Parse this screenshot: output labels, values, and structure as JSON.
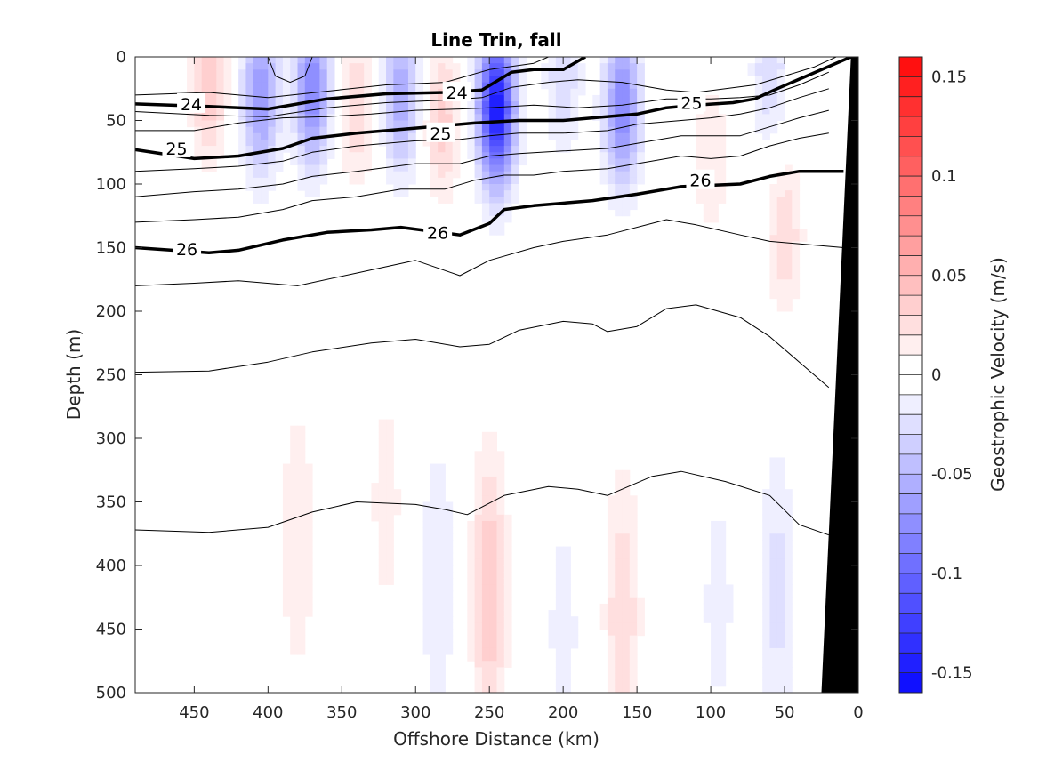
{
  "chart_data": {
    "type": "heatmap",
    "title": "Line Trin, fall",
    "xlabel": "Offshore Distance (km)",
    "ylabel": "Depth (m)",
    "colorbar_label": "Geostrophic Velocity (m/s)",
    "xlim": [
      490,
      0
    ],
    "ylim": [
      0,
      500
    ],
    "x_ticks": [
      "450",
      "400",
      "350",
      "300",
      "250",
      "200",
      "150",
      "100",
      "50",
      "0"
    ],
    "x_tick_values": [
      450,
      400,
      350,
      300,
      250,
      200,
      150,
      100,
      50,
      0
    ],
    "y_ticks": [
      "0",
      "50",
      "100",
      "150",
      "200",
      "250",
      "300",
      "350",
      "400",
      "450",
      "500"
    ],
    "y_tick_values": [
      0,
      50,
      100,
      150,
      200,
      250,
      300,
      350,
      400,
      450,
      500
    ],
    "colorbar_ticks": [
      "0.15",
      "0.1",
      "0.05",
      "0",
      "-0.05",
      "-0.1",
      "-0.15"
    ],
    "colorbar_tick_values": [
      0.15,
      0.1,
      0.05,
      0,
      -0.05,
      -0.1,
      -0.15
    ],
    "clim": [
      -0.16,
      0.16
    ],
    "colorbar_levels": 32,
    "colors": {
      "positive": "#ff0000",
      "negative": "#0000ff",
      "neutral": "#ffffff",
      "topography": "#000000",
      "contour": "#000000"
    },
    "velocity_cores": [
      {
        "x": 440,
        "y": 20,
        "vel": 0.04
      },
      {
        "x": 405,
        "y": 30,
        "vel": -0.07
      },
      {
        "x": 370,
        "y": 25,
        "vel": -0.08
      },
      {
        "x": 340,
        "y": 40,
        "vel": 0.03
      },
      {
        "x": 310,
        "y": 30,
        "vel": -0.06
      },
      {
        "x": 282,
        "y": 50,
        "vel": 0.035
      },
      {
        "x": 245,
        "y": 40,
        "vel": -0.15
      },
      {
        "x": 200,
        "y": 15,
        "vel": -0.03
      },
      {
        "x": 160,
        "y": 40,
        "vel": -0.08
      },
      {
        "x": 100,
        "y": 80,
        "vel": 0.02
      },
      {
        "x": 60,
        "y": 10,
        "vel": -0.03
      },
      {
        "x": 50,
        "y": 140,
        "vel": 0.03
      },
      {
        "x": 380,
        "y": 380,
        "vel": 0.02
      },
      {
        "x": 320,
        "y": 350,
        "vel": 0.015
      },
      {
        "x": 285,
        "y": 410,
        "vel": -0.02
      },
      {
        "x": 250,
        "y": 420,
        "vel": 0.04
      },
      {
        "x": 200,
        "y": 450,
        "vel": -0.015
      },
      {
        "x": 160,
        "y": 440,
        "vel": 0.03
      },
      {
        "x": 95,
        "y": 430,
        "vel": -0.015
      },
      {
        "x": 55,
        "y": 420,
        "vel": -0.025
      },
      {
        "x": 450,
        "y": 350,
        "vel": -0.01
      }
    ],
    "contour_lines": [
      {
        "sigma": "24",
        "bold": true,
        "points": [
          [
            490,
            37
          ],
          [
            440,
            39
          ],
          [
            400,
            41
          ],
          [
            360,
            33
          ],
          [
            320,
            29
          ],
          [
            280,
            28
          ],
          [
            255,
            26
          ],
          [
            235,
            12
          ],
          [
            220,
            10
          ],
          [
            200,
            10
          ],
          [
            185,
            0
          ]
        ]
      },
      {
        "sigma": "25",
        "bold": true,
        "points": [
          [
            490,
            73
          ],
          [
            450,
            80
          ],
          [
            420,
            78
          ],
          [
            390,
            72
          ],
          [
            370,
            64
          ],
          [
            340,
            60
          ],
          [
            300,
            56
          ],
          [
            260,
            52
          ],
          [
            230,
            50
          ],
          [
            200,
            50
          ],
          [
            150,
            45
          ],
          [
            130,
            40
          ],
          [
            110,
            38
          ],
          [
            85,
            36
          ],
          [
            70,
            33
          ],
          [
            55,
            25
          ],
          [
            35,
            15
          ],
          [
            5,
            0
          ]
        ]
      },
      {
        "sigma": "26",
        "bold": true,
        "points": [
          [
            490,
            150
          ],
          [
            440,
            154
          ],
          [
            420,
            152
          ],
          [
            390,
            144
          ],
          [
            360,
            138
          ],
          [
            330,
            136
          ],
          [
            310,
            134
          ],
          [
            270,
            140
          ],
          [
            250,
            131
          ],
          [
            240,
            120
          ],
          [
            220,
            117
          ],
          [
            180,
            113
          ],
          [
            150,
            108
          ],
          [
            120,
            102
          ],
          [
            80,
            100
          ],
          [
            60,
            94
          ],
          [
            40,
            90
          ],
          [
            10,
            90
          ]
        ]
      },
      {
        "sigma": "",
        "bold": false,
        "points": [
          [
            490,
            180
          ],
          [
            450,
            178
          ],
          [
            420,
            176
          ],
          [
            380,
            180
          ],
          [
            340,
            170
          ],
          [
            300,
            160
          ],
          [
            270,
            172
          ],
          [
            250,
            160
          ],
          [
            220,
            150
          ],
          [
            200,
            145
          ],
          [
            170,
            140
          ],
          [
            130,
            128
          ],
          [
            110,
            132
          ],
          [
            80,
            140
          ],
          [
            60,
            145
          ],
          [
            30,
            148
          ],
          [
            10,
            150
          ]
        ]
      },
      {
        "sigma": "",
        "bold": false,
        "points": [
          [
            490,
            248
          ],
          [
            440,
            247
          ],
          [
            400,
            240
          ],
          [
            370,
            232
          ],
          [
            330,
            225
          ],
          [
            300,
            222
          ],
          [
            270,
            228
          ],
          [
            250,
            226
          ],
          [
            230,
            215
          ],
          [
            200,
            208
          ],
          [
            180,
            210
          ],
          [
            170,
            216
          ],
          [
            150,
            212
          ],
          [
            130,
            198
          ],
          [
            110,
            195
          ],
          [
            80,
            205
          ],
          [
            60,
            220
          ],
          [
            40,
            240
          ],
          [
            20,
            260
          ]
        ]
      },
      {
        "sigma": "",
        "bold": false,
        "points": [
          [
            490,
            372
          ],
          [
            440,
            374
          ],
          [
            400,
            370
          ],
          [
            370,
            358
          ],
          [
            340,
            350
          ],
          [
            300,
            352
          ],
          [
            280,
            356
          ],
          [
            265,
            360
          ],
          [
            240,
            345
          ],
          [
            210,
            338
          ],
          [
            190,
            340
          ],
          [
            170,
            345
          ],
          [
            140,
            330
          ],
          [
            120,
            326
          ],
          [
            90,
            334
          ],
          [
            60,
            345
          ],
          [
            40,
            368
          ],
          [
            20,
            376
          ]
        ]
      },
      {
        "sigma": "",
        "bold": false,
        "points": [
          [
            490,
            30
          ],
          [
            440,
            28
          ],
          [
            400,
            32
          ],
          [
            360,
            27
          ],
          [
            320,
            22
          ],
          [
            280,
            20
          ],
          [
            250,
            10
          ],
          [
            220,
            5
          ],
          [
            210,
            0
          ]
        ]
      },
      {
        "sigma": "",
        "bold": false,
        "points": [
          [
            490,
            43
          ],
          [
            440,
            46
          ],
          [
            400,
            47
          ],
          [
            360,
            40
          ],
          [
            320,
            36
          ],
          [
            280,
            34
          ],
          [
            255,
            32
          ],
          [
            235,
            24
          ],
          [
            210,
            20
          ],
          [
            190,
            18
          ],
          [
            160,
            20
          ],
          [
            130,
            26
          ],
          [
            110,
            28
          ],
          [
            90,
            25
          ],
          [
            70,
            22
          ],
          [
            50,
            15
          ],
          [
            30,
            8
          ],
          [
            15,
            0
          ]
        ]
      },
      {
        "sigma": "",
        "bold": false,
        "points": [
          [
            490,
            58
          ],
          [
            450,
            58
          ],
          [
            420,
            52
          ],
          [
            390,
            48
          ],
          [
            360,
            47
          ],
          [
            330,
            45
          ],
          [
            300,
            42
          ],
          [
            270,
            41
          ],
          [
            250,
            40
          ],
          [
            220,
            38
          ],
          [
            190,
            40
          ],
          [
            160,
            38
          ],
          [
            130,
            33
          ],
          [
            100,
            33
          ],
          [
            80,
            32
          ],
          [
            60,
            30
          ],
          [
            40,
            22
          ],
          [
            20,
            12
          ]
        ]
      },
      {
        "sigma": "",
        "bold": false,
        "points": [
          [
            490,
            90
          ],
          [
            450,
            88
          ],
          [
            420,
            86
          ],
          [
            390,
            82
          ],
          [
            370,
            75
          ],
          [
            340,
            70
          ],
          [
            300,
            66
          ],
          [
            270,
            65
          ],
          [
            250,
            62
          ],
          [
            230,
            60
          ],
          [
            200,
            60
          ],
          [
            170,
            58
          ],
          [
            150,
            53
          ],
          [
            120,
            50
          ],
          [
            100,
            48
          ],
          [
            80,
            45
          ],
          [
            60,
            40
          ],
          [
            40,
            32
          ],
          [
            20,
            25
          ]
        ]
      },
      {
        "sigma": "",
        "bold": false,
        "points": [
          [
            490,
            110
          ],
          [
            450,
            106
          ],
          [
            420,
            104
          ],
          [
            390,
            100
          ],
          [
            370,
            94
          ],
          [
            340,
            90
          ],
          [
            300,
            84
          ],
          [
            270,
            84
          ],
          [
            250,
            78
          ],
          [
            230,
            76
          ],
          [
            200,
            74
          ],
          [
            170,
            72
          ],
          [
            150,
            68
          ],
          [
            120,
            62
          ],
          [
            100,
            62
          ],
          [
            80,
            62
          ],
          [
            60,
            55
          ],
          [
            40,
            48
          ],
          [
            20,
            42
          ]
        ]
      },
      {
        "sigma": "",
        "bold": false,
        "points": [
          [
            490,
            130
          ],
          [
            450,
            128
          ],
          [
            420,
            126
          ],
          [
            390,
            120
          ],
          [
            370,
            113
          ],
          [
            340,
            110
          ],
          [
            310,
            104
          ],
          [
            280,
            104
          ],
          [
            260,
            97
          ],
          [
            240,
            93
          ],
          [
            220,
            93
          ],
          [
            200,
            90
          ],
          [
            170,
            88
          ],
          [
            140,
            82
          ],
          [
            120,
            78
          ],
          [
            100,
            80
          ],
          [
            80,
            78
          ],
          [
            60,
            70
          ],
          [
            40,
            64
          ],
          [
            20,
            60
          ]
        ]
      },
      {
        "sigma": "",
        "bold": false,
        "points": [
          [
            400,
            0
          ],
          [
            395,
            15
          ],
          [
            385,
            20
          ],
          [
            375,
            15
          ],
          [
            370,
            0
          ]
        ]
      }
    ],
    "topography": [
      [
        25,
        500
      ],
      [
        0,
        500
      ],
      [
        0,
        0
      ],
      [
        5,
        0
      ]
    ],
    "contour_labels": [
      {
        "text": "24",
        "x": 452,
        "y": 37
      },
      {
        "text": "24",
        "x": 272,
        "y": 28
      },
      {
        "text": "25",
        "x": 462,
        "y": 72
      },
      {
        "text": "25",
        "x": 283,
        "y": 60
      },
      {
        "text": "25",
        "x": 113,
        "y": 36
      },
      {
        "text": "26",
        "x": 455,
        "y": 151
      },
      {
        "text": "26",
        "x": 285,
        "y": 138
      },
      {
        "text": "26",
        "x": 107,
        "y": 97
      }
    ]
  }
}
